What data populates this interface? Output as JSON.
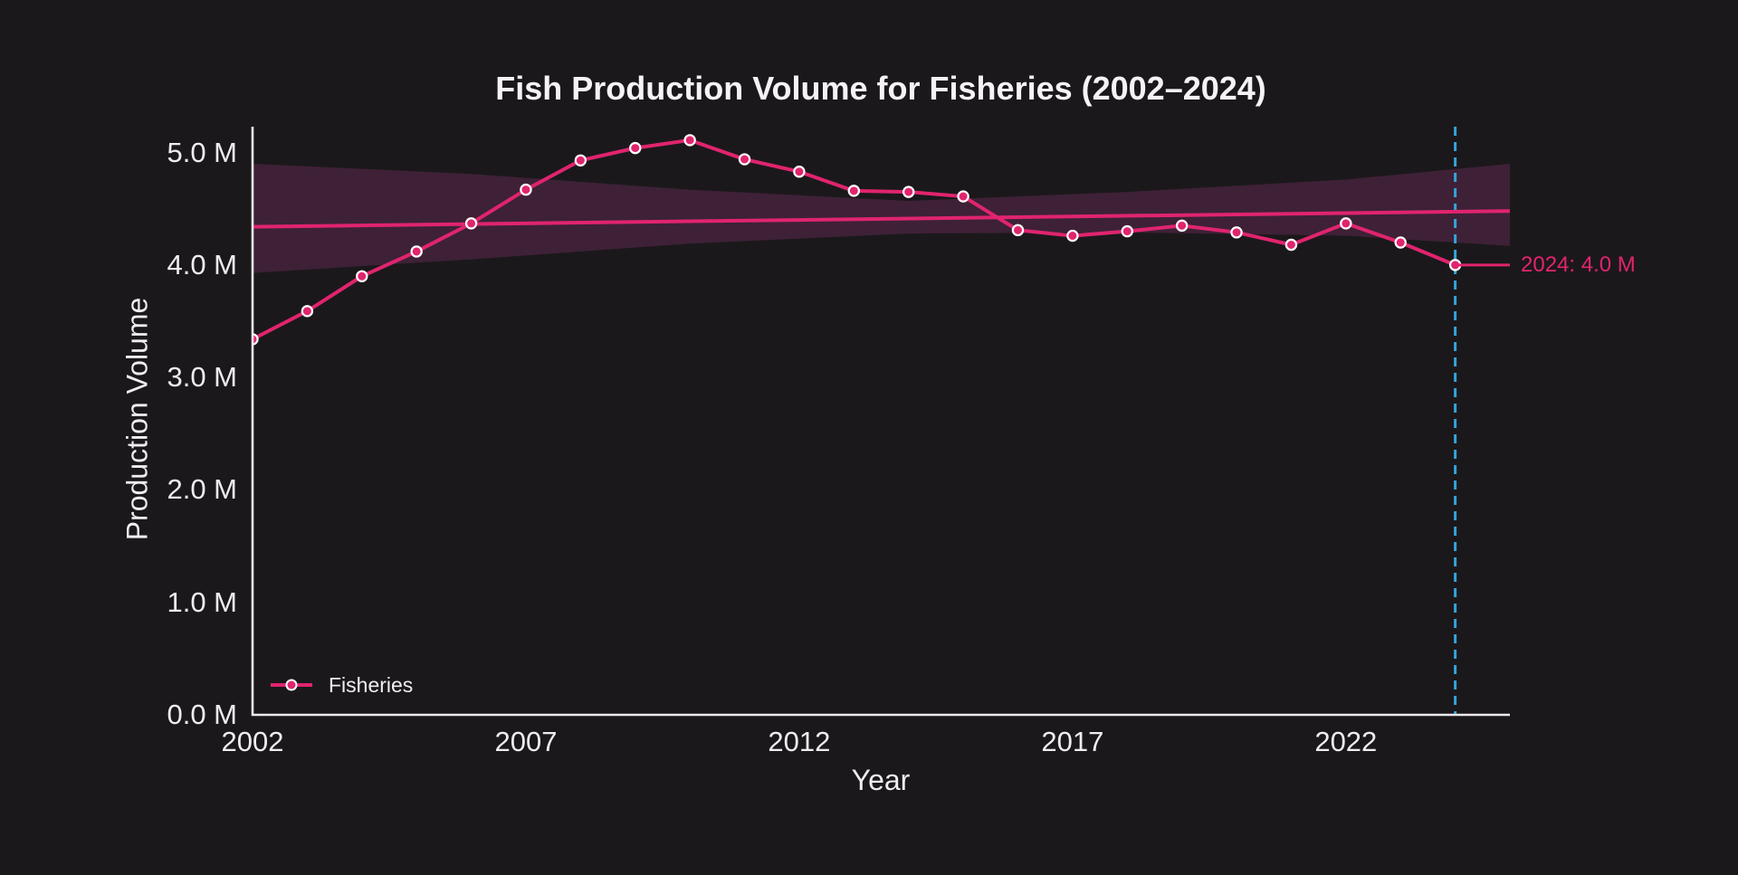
{
  "page": {
    "background": "#1b181b"
  },
  "chart": {
    "title": "Fish Production Volume for Fisheries (2002–2024)",
    "x_axis": {
      "label": "Year",
      "tick_labels": [
        "2002",
        "2007",
        "2012",
        "2017",
        "2022"
      ],
      "tick_years": [
        2002,
        2007,
        2012,
        2017,
        2022
      ]
    },
    "y_axis": {
      "label": "Production Volume",
      "tick_labels": [
        "0.0 M",
        "1.0 M",
        "2.0 M",
        "3.0 M",
        "4.0 M",
        "5.0 M"
      ],
      "tick_values": [
        0,
        1,
        2,
        3,
        4,
        5
      ]
    },
    "legend": {
      "label": "Fisheries"
    },
    "annotation": {
      "text": "2024: 4.0 M"
    },
    "colors": {
      "background": "#1b181b",
      "series": "#e0246e",
      "trend": "#e0246e",
      "band": "#3e2136",
      "vline": "#34a4da",
      "axis": "#eceaec",
      "text": "#efedef",
      "marker_ring": "#ffffff",
      "annotation_text": "#e0246e"
    }
  },
  "chart_data": {
    "type": "line",
    "title": "Fish Production Volume for Fisheries (2002–2024)",
    "xlabel": "Year",
    "ylabel": "Production Volume",
    "unit": "M",
    "grid": false,
    "legend_position": "bottom-left",
    "xlim": [
      2002,
      2025
    ],
    "ylim": [
      0,
      5.23
    ],
    "x": [
      2002,
      2003,
      2004,
      2005,
      2006,
      2007,
      2008,
      2009,
      2010,
      2011,
      2012,
      2013,
      2014,
      2015,
      2016,
      2017,
      2018,
      2019,
      2020,
      2021,
      2022,
      2023,
      2024
    ],
    "series": [
      {
        "name": "Fisheries",
        "values": [
          3.34,
          3.59,
          3.9,
          4.12,
          4.37,
          4.67,
          4.93,
          5.04,
          5.11,
          4.94,
          4.83,
          4.66,
          4.65,
          4.61,
          4.31,
          4.26,
          4.3,
          4.35,
          4.29,
          4.18,
          4.37,
          4.2,
          4.0
        ]
      }
    ],
    "trendline": {
      "x": [
        2002,
        2025
      ],
      "values": [
        4.34,
        4.48
      ]
    },
    "confidence_band": {
      "x": [
        2002,
        2006,
        2010,
        2014,
        2018,
        2022,
        2025
      ],
      "upper": [
        4.9,
        4.81,
        4.67,
        4.57,
        4.65,
        4.76,
        4.9
      ],
      "lower": [
        3.93,
        4.05,
        4.19,
        4.28,
        4.29,
        4.26,
        4.17
      ]
    },
    "reference_line": {
      "type": "vertical",
      "x": 2024
    },
    "annotation": {
      "x": 2024,
      "y": 4.0,
      "text": "2024: 4.0 M"
    }
  }
}
